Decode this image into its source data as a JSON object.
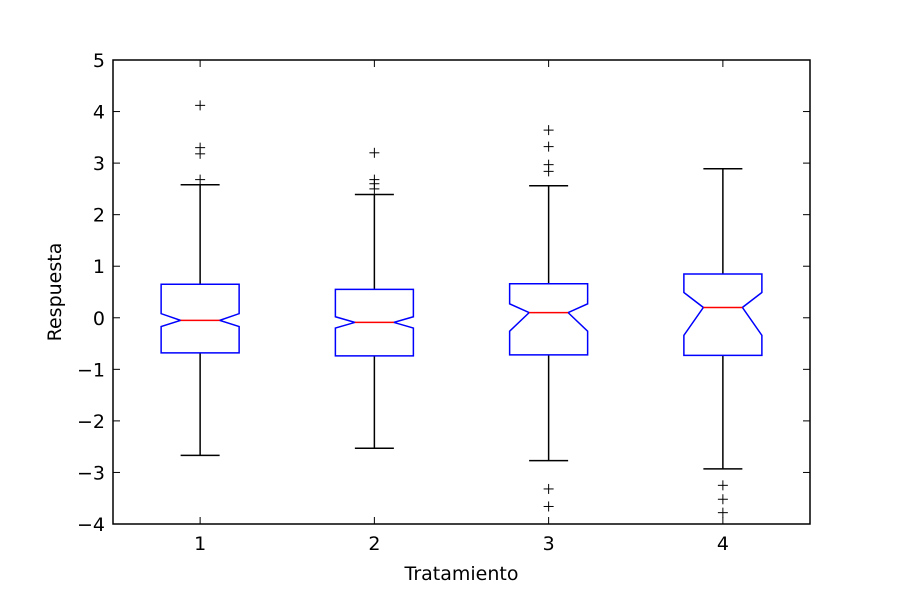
{
  "chart_data": {
    "type": "boxplot",
    "notched": true,
    "xlabel": "Tratamiento",
    "ylabel": "Respuesta",
    "categories": [
      "1",
      "2",
      "3",
      "4"
    ],
    "ylim": [
      -4,
      5
    ],
    "yticks": [
      5,
      4,
      3,
      2,
      1,
      0,
      -1,
      -2,
      -3,
      -4
    ],
    "ytick_labels": [
      "5",
      "4",
      "3",
      "2",
      "1",
      "0",
      "−1",
      "−2",
      "−3",
      "−4"
    ],
    "grid": false,
    "boxes": [
      {
        "category": "1",
        "whisker_low": -2.67,
        "q1": -0.68,
        "median": -0.05,
        "q3": 0.65,
        "whisker_high": 2.58,
        "notch_low": -0.17,
        "notch_high": 0.08,
        "outliers": [
          4.12,
          3.3,
          3.18,
          2.68
        ]
      },
      {
        "category": "2",
        "whisker_low": -2.53,
        "q1": -0.74,
        "median": -0.09,
        "q3": 0.55,
        "whisker_high": 2.39,
        "notch_low": -0.2,
        "notch_high": 0.02,
        "outliers": [
          3.2,
          2.68,
          2.6,
          2.5
        ]
      },
      {
        "category": "3",
        "whisker_low": -2.77,
        "q1": -0.72,
        "median": 0.1,
        "q3": 0.66,
        "whisker_high": 2.56,
        "notch_low": -0.26,
        "notch_high": 0.27,
        "outliers": [
          3.64,
          3.32,
          2.97,
          2.84,
          -3.32,
          -3.66
        ]
      },
      {
        "category": "4",
        "whisker_low": -2.93,
        "q1": -0.73,
        "median": 0.2,
        "q3": 0.85,
        "whisker_high": 2.89,
        "notch_low": -0.34,
        "notch_high": 0.49,
        "outliers": [
          -3.25,
          -3.52,
          -3.78
        ]
      }
    ],
    "colors": {
      "box": "#0000ff",
      "median": "#ff0000",
      "whisker": "#000000",
      "flier": "#000000",
      "frame": "#000000"
    },
    "flier_marker": "+"
  }
}
